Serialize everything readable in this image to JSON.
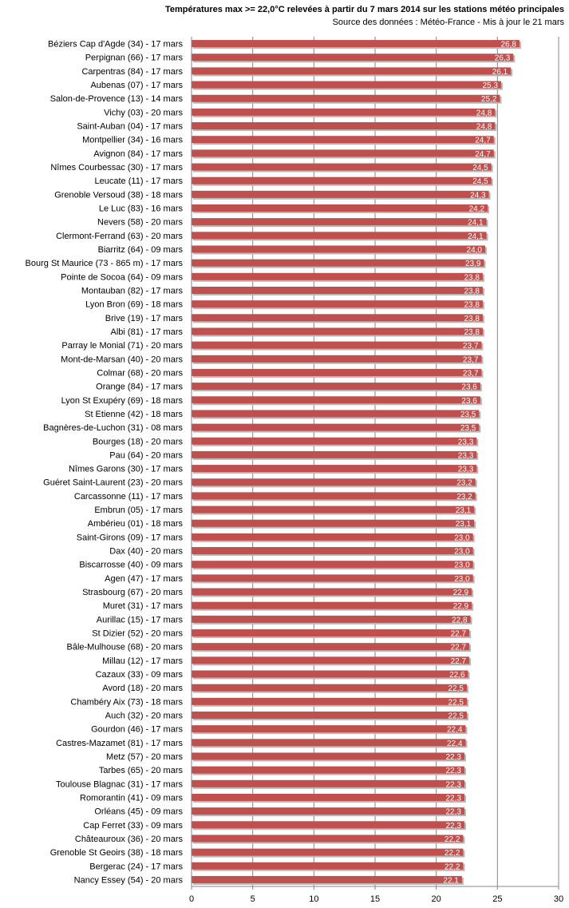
{
  "chart_data": {
    "type": "bar",
    "orientation": "horizontal",
    "title": "Températures max >= 22,0°C relevées à partir du 7 mars 2014 sur les stations météo principales",
    "subtitle": "Source des données : Météo-France - Mis à jour le 21 mars",
    "xlabel": "",
    "ylabel": "",
    "xlim": [
      0,
      30
    ],
    "xticks": [
      0,
      5,
      10,
      15,
      20,
      25,
      30
    ],
    "xtick_labels": [
      "0",
      "5",
      "10",
      "15",
      "20",
      "25",
      "30"
    ],
    "grid": true,
    "bar_color": "#c0504d",
    "categories": [
      "Béziers Cap d'Agde (34) - 17 mars",
      "Perpignan (66) - 17 mars",
      "Carpentras (84) - 17 mars",
      "Aubenas (07) - 17 mars",
      "Salon-de-Provence (13) - 14 mars",
      "Vichy (03) - 20 mars",
      "Saint-Auban (04) - 17 mars",
      "Montpellier (34) - 16 mars",
      "Avignon (84) - 17 mars",
      "Nîmes Courbessac (30) - 17 mars",
      "Leucate (11) - 17 mars",
      "Grenoble Versoud (38) - 18 mars",
      "Le Luc (83) - 16 mars",
      "Nevers (58) - 20 mars",
      "Clermont-Ferrand (63) - 20 mars",
      "Biarritz (64) - 09 mars",
      "Bourg St Maurice (73 - 865 m) - 17 mars",
      "Pointe de Socoa (64) - 09 mars",
      "Montauban (82) - 17 mars",
      "Lyon Bron (69) - 18 mars",
      "Brive (19) - 17 mars",
      "Albi (81) - 17 mars",
      "Parray le Monial (71) - 20 mars",
      "Mont-de-Marsan (40) - 20 mars",
      "Colmar (68) - 20 mars",
      "Orange (84) - 17 mars",
      "Lyon St Exupéry (69) - 18 mars",
      "St Etienne (42) - 18 mars",
      "Bagnères-de-Luchon (31) - 08 mars",
      "Bourges (18) - 20 mars",
      "Pau (64) - 20 mars",
      "Nîmes Garons (30) - 17 mars",
      "Guéret Saint-Laurent (23) - 20 mars",
      "Carcassonne (11) - 17 mars",
      "Embrun (05) - 17 mars",
      "Ambérieu (01) - 18 mars",
      "Saint-Girons (09) - 17 mars",
      "Dax (40) - 20 mars",
      "Biscarrosse (40) - 09 mars",
      "Agen (47) - 17 mars",
      "Strasbourg (67) - 20 mars",
      "Muret (31) - 17 mars",
      "Aurillac (15) - 17 mars",
      "St Dizier (52) - 20 mars",
      "Bâle-Mulhouse (68) - 20 mars",
      "Millau (12) - 17 mars",
      "Cazaux (33) - 09 mars",
      "Avord (18) - 20 mars",
      "Chambéry Aix (73) - 18 mars",
      "Auch (32) - 20 mars",
      "Gourdon (46) - 17 mars",
      "Castres-Mazamet (81) - 17 mars",
      "Metz (57) - 20 mars",
      "Tarbes (65) - 20 mars",
      "Toulouse Blagnac (31) - 17 mars",
      "Romorantin (41) - 09 mars",
      "Orléans (45) - 09 mars",
      "Cap Ferret (33) - 09 mars",
      "Châteauroux (36) - 20 mars",
      "Grenoble St Geoirs (38) - 18 mars",
      "Bergerac (24) - 17 mars",
      "Nancy Essey (54) - 20 mars"
    ],
    "values": [
      26.8,
      26.3,
      26.1,
      25.3,
      25.2,
      24.8,
      24.8,
      24.7,
      24.7,
      24.5,
      24.5,
      24.3,
      24.2,
      24.1,
      24.1,
      24.0,
      23.9,
      23.8,
      23.8,
      23.8,
      23.8,
      23.8,
      23.7,
      23.7,
      23.7,
      23.6,
      23.6,
      23.5,
      23.5,
      23.3,
      23.3,
      23.3,
      23.2,
      23.2,
      23.1,
      23.1,
      23.0,
      23.0,
      23.0,
      23.0,
      22.9,
      22.9,
      22.8,
      22.7,
      22.7,
      22.7,
      22.6,
      22.5,
      22.5,
      22.5,
      22.4,
      22.4,
      22.3,
      22.3,
      22.3,
      22.3,
      22.3,
      22.3,
      22.2,
      22.2,
      22.2,
      22.1
    ],
    "value_labels": [
      "26,8",
      "26,3",
      "26,1",
      "25,3",
      "25,2",
      "24,8",
      "24,8",
      "24,7",
      "24,7",
      "24,5",
      "24,5",
      "24,3",
      "24,2",
      "24,1",
      "24,1",
      "24,0",
      "23,9",
      "23,8",
      "23,8",
      "23,8",
      "23,8",
      "23,8",
      "23,7",
      "23,7",
      "23,7",
      "23,6",
      "23,6",
      "23,5",
      "23,5",
      "23,3",
      "23,3",
      "23,3",
      "23,2",
      "23,2",
      "23,1",
      "23,1",
      "23,0",
      "23,0",
      "23,0",
      "23,0",
      "22,9",
      "22,9",
      "22,8",
      "22,7",
      "22,7",
      "22,7",
      "22,6",
      "22,5",
      "22,5",
      "22,5",
      "22,4",
      "22,4",
      "22,3",
      "22,3",
      "22,3",
      "22,3",
      "22,3",
      "22,3",
      "22,2",
      "22,2",
      "22,2",
      "22,1"
    ]
  }
}
